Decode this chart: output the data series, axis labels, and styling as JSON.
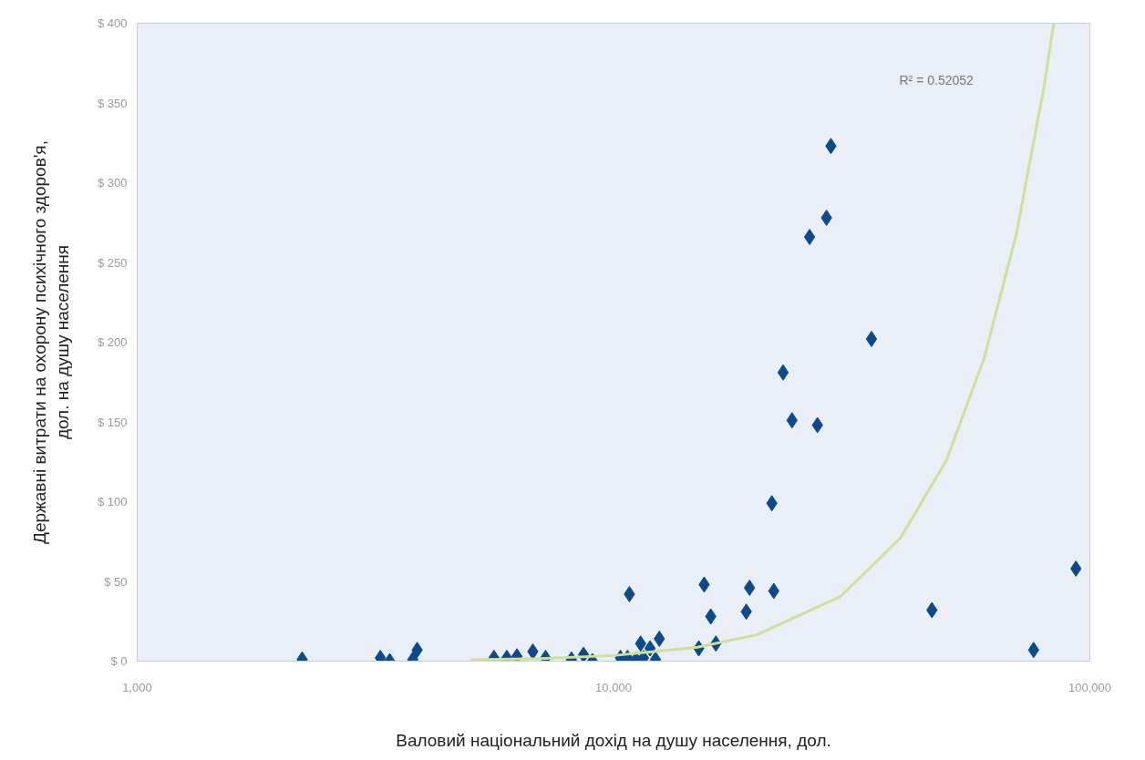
{
  "chart_data": {
    "type": "scatter",
    "xlabel": "Валовий національний дохід на душу населення, дол.",
    "ylabel": "Державні витрати на охорону психічного здоров'я,\nдол. на душу населення",
    "log": "x",
    "grid": false,
    "xlim": [
      1000,
      100000
    ],
    "xticks": [
      {
        "value": 1000,
        "label": "1,000"
      },
      {
        "value": 10000,
        "label": "10,000"
      },
      {
        "value": 100000,
        "label": "100,000"
      }
    ],
    "ylim": [
      0,
      400
    ],
    "yticks": [
      {
        "value": 0,
        "label": "$ 0"
      },
      {
        "value": 50,
        "label": "$ 50"
      },
      {
        "value": 100,
        "label": "$ 100"
      },
      {
        "value": 150,
        "label": "$ 150"
      },
      {
        "value": 200,
        "label": "$ 200"
      },
      {
        "value": 250,
        "label": "$ 250"
      },
      {
        "value": 300,
        "label": "$ 300"
      },
      {
        "value": 350,
        "label": "$ 350"
      },
      {
        "value": 400,
        "label": "$ 400"
      }
    ],
    "annotations": [
      "R² = 0.52052"
    ],
    "series": [
      {
        "marker": "diamond",
        "color": "#0b4a8b",
        "x": [
          2220,
          3240,
          3390,
          3790,
          3870,
          5610,
          5970,
          6270,
          6770,
          7200,
          8160,
          8650,
          9030,
          10800,
          10340,
          10700,
          11150,
          11560,
          11400,
          11930,
          12480,
          12250,
          15500,
          16000,
          15100,
          16400,
          19300,
          21700,
          19000,
          28600,
          28000,
          25800,
          34800,
          22700,
          23700,
          26800,
          21500,
          93500,
          46600,
          76200
        ],
        "values": [
          1,
          2,
          0,
          1,
          7,
          2,
          2,
          3,
          6,
          2,
          1,
          4,
          0,
          42,
          2,
          2,
          1,
          2,
          11,
          8,
          14,
          1,
          48,
          28,
          8,
          11,
          46,
          44,
          31,
          323,
          278,
          266,
          202,
          181,
          151,
          148,
          99,
          58,
          32,
          7
        ]
      },
      {
        "type": "line",
        "color": "#cfdf98",
        "x": [
          5000,
          7000,
          10000,
          15000,
          20000,
          30000,
          40000,
          50000,
          60000,
          70000,
          80000,
          84000
        ],
        "values": [
          0.8,
          1.6,
          3.5,
          8.7,
          16.5,
          40.7,
          77,
          126,
          190,
          267,
          359,
          400
        ]
      }
    ]
  }
}
